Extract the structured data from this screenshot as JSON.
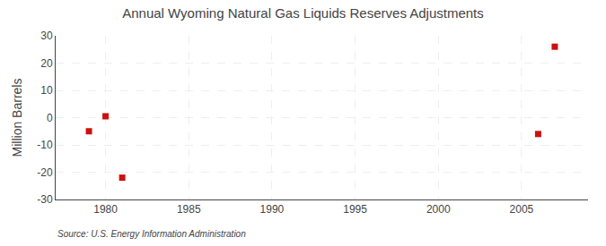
{
  "chart_data": {
    "type": "scatter",
    "title": "Annual Wyoming Natural Gas Liquids Reserves Adjustments",
    "ylabel": "Million Barrels",
    "annotations": [
      "Source: U.S. Energy Information Administration"
    ],
    "x": [
      1979,
      1980,
      1981,
      2006,
      2007
    ],
    "values": [
      -5.0,
      0.5,
      -22.0,
      -6.0,
      26.0
    ],
    "color": "#cc1111",
    "marker": "square",
    "xlim": [
      1977,
      2009
    ],
    "xticks": [
      1980,
      1985,
      1990,
      1995,
      2000,
      2005
    ],
    "ylim": [
      -30,
      30
    ],
    "yticks": [
      -30,
      -20,
      -10,
      0,
      10,
      20,
      30
    ],
    "grid": true
  }
}
